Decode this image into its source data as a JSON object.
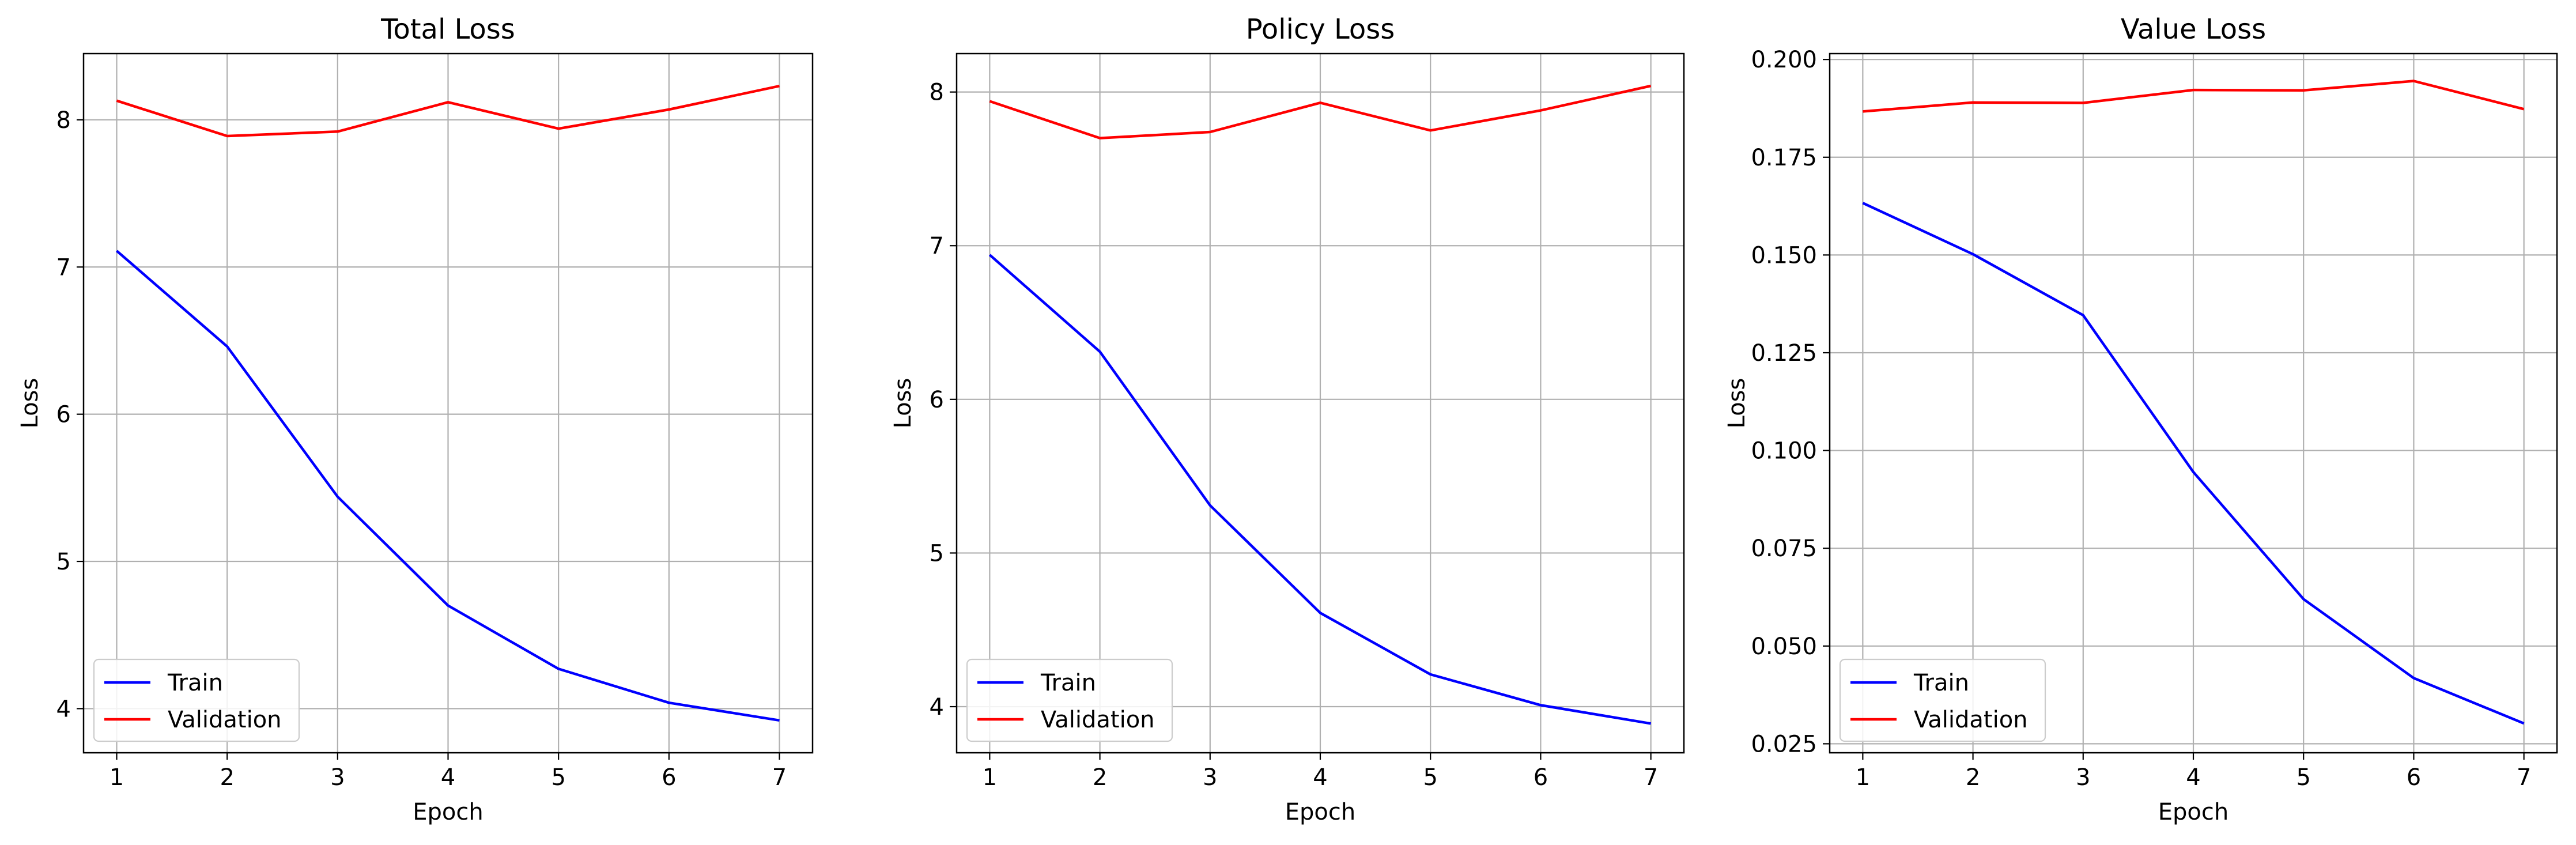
{
  "colors": {
    "train": "#0000ff",
    "validation": "#ff0000",
    "grid": "#b0b0b0",
    "axes": "#000000"
  },
  "chart_data": [
    {
      "type": "line",
      "title": "Total Loss",
      "xlabel": "Epoch",
      "ylabel": "Loss",
      "x": [
        1,
        2,
        3,
        4,
        5,
        6,
        7
      ],
      "xlim": [
        0.7,
        7.3
      ],
      "ylim": [
        3.7,
        8.45
      ],
      "xticks": [
        1,
        2,
        3,
        4,
        5,
        6,
        7
      ],
      "yticks": [
        4,
        5,
        6,
        7,
        8
      ],
      "ytick_labels": [
        "4",
        "5",
        "6",
        "7",
        "8"
      ],
      "grid": true,
      "legend_position": "lower-left",
      "series": [
        {
          "name": "Train",
          "color": "#0000ff",
          "values": [
            7.11,
            6.46,
            5.44,
            4.7,
            4.27,
            4.04,
            3.92
          ]
        },
        {
          "name": "Validation",
          "color": "#ff0000",
          "values": [
            8.13,
            7.89,
            7.92,
            8.12,
            7.94,
            8.07,
            8.23
          ]
        }
      ]
    },
    {
      "type": "line",
      "title": "Policy Loss",
      "xlabel": "Epoch",
      "ylabel": "Loss",
      "x": [
        1,
        2,
        3,
        4,
        5,
        6,
        7
      ],
      "xlim": [
        0.7,
        7.3
      ],
      "ylim": [
        3.7,
        8.25
      ],
      "xticks": [
        1,
        2,
        3,
        4,
        5,
        6,
        7
      ],
      "yticks": [
        4,
        5,
        6,
        7,
        8
      ],
      "ytick_labels": [
        "4",
        "5",
        "6",
        "7",
        "8"
      ],
      "grid": true,
      "legend_position": "lower-left",
      "series": [
        {
          "name": "Train",
          "color": "#0000ff",
          "values": [
            6.94,
            6.31,
            5.31,
            4.61,
            4.21,
            4.01,
            3.89
          ]
        },
        {
          "name": "Validation",
          "color": "#ff0000",
          "values": [
            7.94,
            7.7,
            7.74,
            7.93,
            7.75,
            7.88,
            8.04
          ]
        }
      ]
    },
    {
      "type": "line",
      "title": "Value Loss",
      "xlabel": "Epoch",
      "ylabel": "Loss",
      "x": [
        1,
        2,
        3,
        4,
        5,
        6,
        7
      ],
      "xlim": [
        0.7,
        7.3
      ],
      "ylim": [
        0.0227,
        0.2015
      ],
      "xticks": [
        1,
        2,
        3,
        4,
        5,
        6,
        7
      ],
      "yticks": [
        0.025,
        0.05,
        0.075,
        0.1,
        0.125,
        0.15,
        0.175,
        0.2
      ],
      "ytick_labels": [
        "0.025",
        "0.050",
        "0.075",
        "0.100",
        "0.125",
        "0.150",
        "0.175",
        "0.200"
      ],
      "grid": true,
      "legend_position": "lower-left",
      "series": [
        {
          "name": "Train",
          "color": "#0000ff",
          "values": [
            0.1633,
            0.1502,
            0.1346,
            0.0945,
            0.062,
            0.0418,
            0.0302
          ]
        },
        {
          "name": "Validation",
          "color": "#ff0000",
          "values": [
            0.1867,
            0.189,
            0.1889,
            0.1922,
            0.1921,
            0.1945,
            0.1873
          ]
        }
      ]
    }
  ]
}
